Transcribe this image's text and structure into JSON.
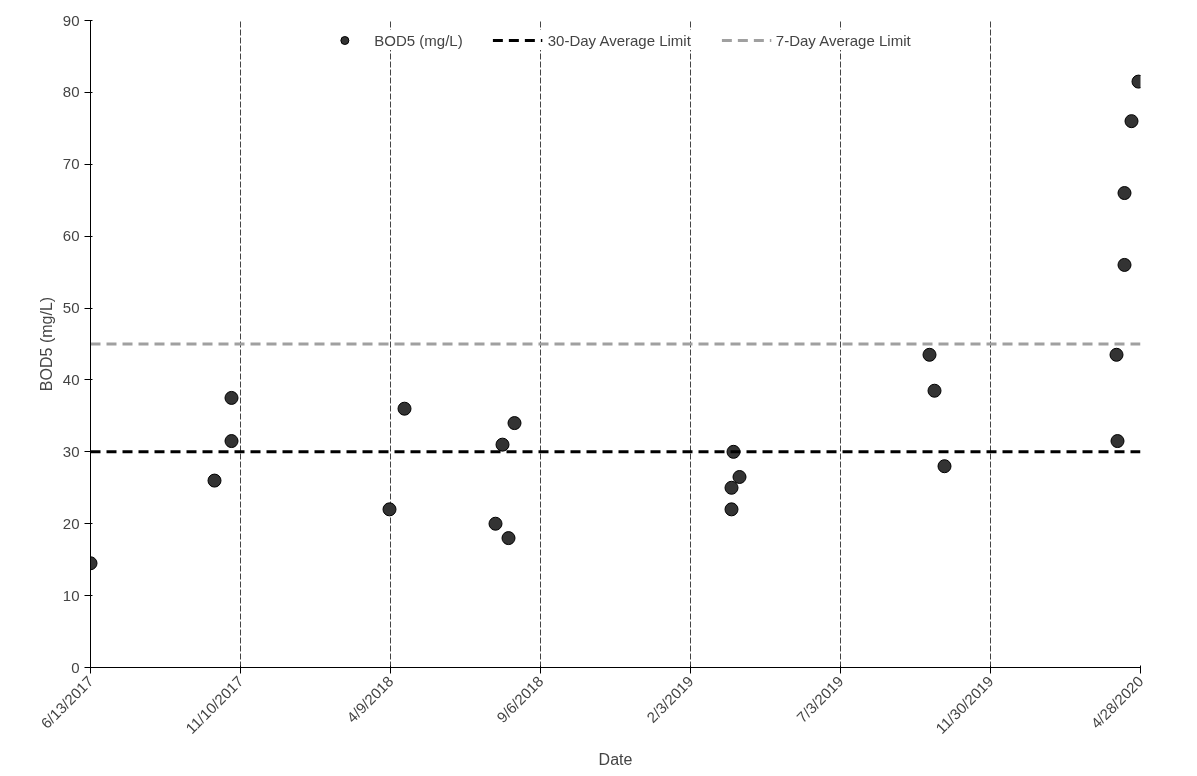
{
  "chart_data": {
    "type": "scatter",
    "xlabel": "Date",
    "ylabel": "BOD5 (mg/L)",
    "x": [
      "2017-06-13",
      "2017-10-15",
      "2017-11-01",
      "2017-11-01",
      "2018-04-08",
      "2018-04-23",
      "2018-07-23",
      "2018-07-30",
      "2018-08-05",
      "2018-08-11",
      "2019-03-16",
      "2019-03-16",
      "2019-03-18",
      "2019-03-24",
      "2019-09-30",
      "2019-10-05",
      "2019-10-15",
      "2020-04-04",
      "2020-04-05",
      "2020-04-12",
      "2020-04-12",
      "2020-04-19",
      "2020-04-26"
    ],
    "series": [
      {
        "name": "BOD5 (mg/L)",
        "color": "#333333",
        "values": [
          14.5,
          26,
          37.5,
          31.5,
          22,
          36,
          20,
          31,
          18,
          34,
          22,
          25,
          30,
          26.5,
          43.5,
          38.5,
          28,
          43.5,
          31.5,
          56,
          66,
          76,
          81.5
        ]
      }
    ],
    "ref_lines": [
      {
        "axis": "y",
        "value": 30,
        "label": "30-Day Average Limit",
        "color": "#000000",
        "line_style": "dashed"
      },
      {
        "axis": "y",
        "value": 45,
        "label": "7-Day Average Limit",
        "color": "#a0a0a0",
        "line_style": "dashed"
      }
    ],
    "xlim": [
      "2017-06-13",
      "2020-04-28"
    ],
    "xticks": [
      {
        "value": "2017-06-13",
        "label": "6/13/2017"
      },
      {
        "value": "2017-11-10",
        "label": "11/10/2017"
      },
      {
        "value": "2018-04-09",
        "label": "4/9/2018"
      },
      {
        "value": "2018-09-06",
        "label": "9/6/2018"
      },
      {
        "value": "2019-02-03",
        "label": "2/3/2019"
      },
      {
        "value": "2019-07-03",
        "label": "7/3/2019"
      },
      {
        "value": "2019-11-30",
        "label": "11/30/2019"
      },
      {
        "value": "2020-04-28",
        "label": "4/28/2020"
      }
    ],
    "ylim": [
      0,
      90
    ],
    "yticks": [
      0,
      10,
      20,
      30,
      40,
      50,
      60,
      70,
      80,
      90
    ],
    "grid": "x",
    "legend": "top",
    "marker": "circle"
  }
}
